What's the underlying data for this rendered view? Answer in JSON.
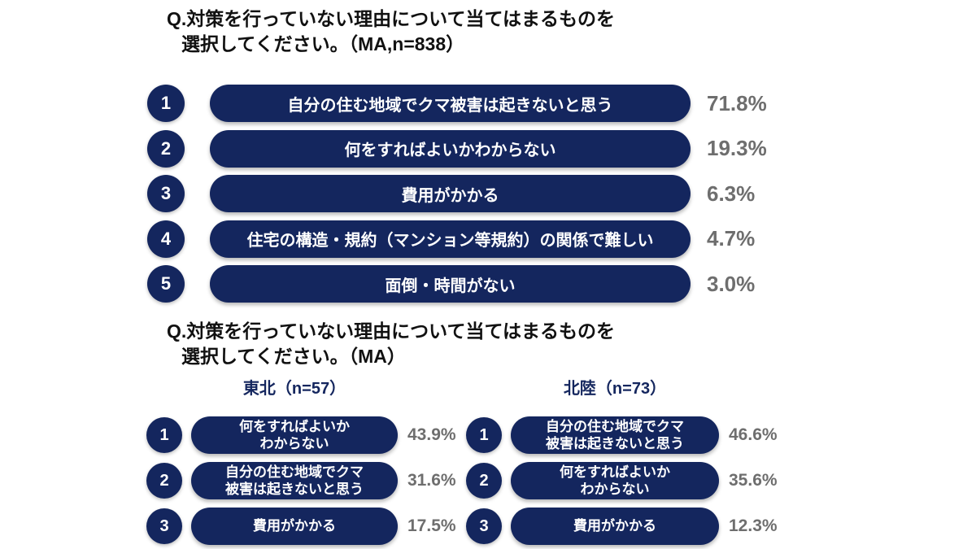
{
  "colors": {
    "navy": "#14265E",
    "percent_gray": "#6E6E6E",
    "title_black": "#111111",
    "bar_text_white": "#FFFFFF"
  },
  "section_overall": {
    "title_line1": "Q.対策を行っていない理由について当てはまるものを",
    "title_line2": "選択してください。（MA,n=838）",
    "items": [
      {
        "rank": "1",
        "label": "自分の住む地域でクマ被害は起きないと思う",
        "value": "71.8%"
      },
      {
        "rank": "2",
        "label": "何をすればよいかわからない",
        "value": "19.3%"
      },
      {
        "rank": "3",
        "label": "費用がかかる",
        "value": "6.3%"
      },
      {
        "rank": "4",
        "label": "住宅の構造・規約（マンション等規約）の関係で難しい",
        "value": "4.7%"
      },
      {
        "rank": "5",
        "label": "面倒・時間がない",
        "value": "3.0%"
      }
    ]
  },
  "section_regional": {
    "title_line1": "Q.対策を行っていない理由について当てはまるものを",
    "title_line2": "選択してください。（MA）",
    "groups": [
      {
        "heading": "東北（n=57）",
        "items": [
          {
            "rank": "1",
            "label": "何をすればよいか\nわからない",
            "value": "43.9%"
          },
          {
            "rank": "2",
            "label": "自分の住む地域でクマ\n被害は起きないと思う",
            "value": "31.6%"
          },
          {
            "rank": "3",
            "label": "費用がかかる",
            "value": "17.5%"
          }
        ]
      },
      {
        "heading": "北陸（n=73）",
        "items": [
          {
            "rank": "1",
            "label": "自分の住む地域でクマ\n被害は起きないと思う",
            "value": "46.6%"
          },
          {
            "rank": "2",
            "label": "何をすればよいか\nわからない",
            "value": "35.6%"
          },
          {
            "rank": "3",
            "label": "費用がかかる",
            "value": "12.3%"
          }
        ]
      }
    ]
  },
  "chart_data": [
    {
      "type": "bar",
      "title": "Q.対策を行っていない理由について当てはまるものを選択してください。（MA,n=838）",
      "categories": [
        "自分の住む地域でクマ被害は起きないと思う",
        "何をすればよいかわからない",
        "費用がかかる",
        "住宅の構造・規約（マンション等規約）の関係で難しい",
        "面倒・時間がない"
      ],
      "values": [
        71.8,
        19.3,
        6.3,
        4.7,
        3.0
      ],
      "unit": "%",
      "n": 838,
      "layout": "horizontal ranked pill list, equal-width bars with data labels at right"
    },
    {
      "type": "bar",
      "title": "Q.対策を行っていない理由について当てはまるものを選択してください。（MA）",
      "series": [
        {
          "name": "東北（n=57）",
          "categories": [
            "何をすればよいかわからない",
            "自分の住む地域でクマ被害は起きないと思う",
            "費用がかかる"
          ],
          "values": [
            43.9,
            31.6,
            17.5
          ]
        },
        {
          "name": "北陸（n=73）",
          "categories": [
            "自分の住む地域でクマ被害は起きないと思う",
            "何をすればよいかわからない",
            "費用がかかる"
          ],
          "values": [
            46.6,
            35.6,
            12.3
          ]
        }
      ],
      "unit": "%",
      "layout": "two side-by-side ranked pill lists with data labels at right"
    }
  ]
}
